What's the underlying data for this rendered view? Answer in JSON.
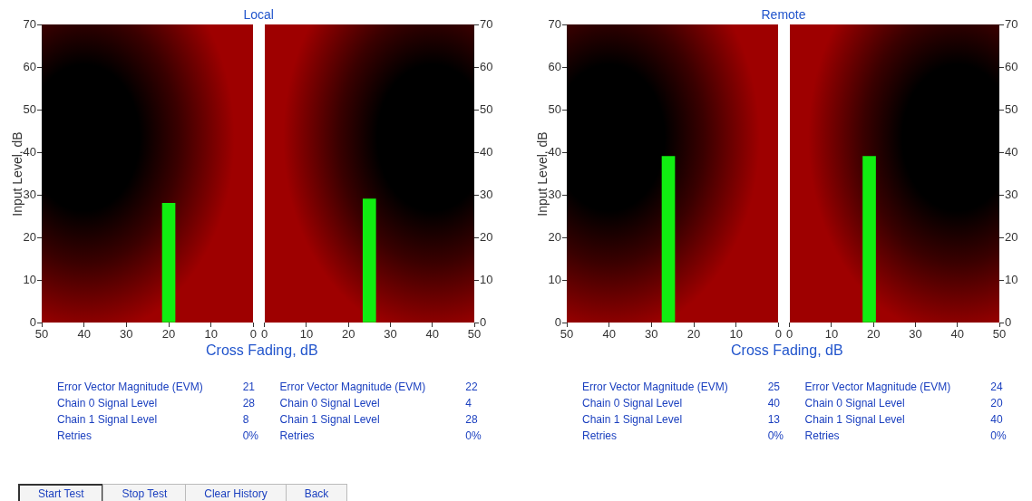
{
  "chart_data": [
    {
      "type": "bar",
      "title": "Local",
      "xlabel": "Cross Fading, dB",
      "ylabel": "Input Level, dB",
      "x": [
        20
      ],
      "series": [
        {
          "color": "#11ee11",
          "values": [
            28
          ]
        }
      ],
      "xlim": [
        50,
        0
      ],
      "xticks": [
        50,
        40,
        30,
        20,
        10,
        0
      ],
      "ylim": [
        0,
        70
      ],
      "yticks": [
        0,
        10,
        20,
        30,
        40,
        50,
        60,
        70
      ],
      "annotations": [
        "Error Vector Magnitude (EVM)",
        "21",
        "Chain 0 Signal Level",
        "28",
        "Chain 1 Signal Level",
        "8",
        "Retries",
        "0%"
      ]
    },
    {
      "type": "bar",
      "x": [
        25
      ],
      "series": [
        {
          "color": "#11ee11",
          "values": [
            29
          ],
          "axis": "y2"
        }
      ],
      "xlim": [
        0,
        50
      ],
      "xticks": [
        0,
        10,
        20,
        30,
        40,
        50
      ],
      "y2lim": [
        0,
        70
      ],
      "y2ticks": [
        0,
        10,
        20,
        30,
        40,
        50,
        60,
        70
      ],
      "annotations": [
        "Error Vector Magnitude (EVM)",
        "22",
        "Chain 0 Signal Level",
        "4",
        "Chain 1 Signal Level",
        "28",
        "Retries",
        "0%"
      ]
    },
    {
      "type": "bar",
      "title": "Remote",
      "xlabel": "Cross Fading, dB",
      "ylabel": "Input Level, dB",
      "x": [
        26
      ],
      "series": [
        {
          "color": "#11ee11",
          "values": [
            39
          ]
        }
      ],
      "xlim": [
        50,
        0
      ],
      "xticks": [
        50,
        40,
        30,
        20,
        10,
        0
      ],
      "ylim": [
        0,
        70
      ],
      "yticks": [
        0,
        10,
        20,
        30,
        40,
        50,
        60,
        70
      ],
      "annotations": [
        "Error Vector Magnitude (EVM)",
        "25",
        "Chain 0 Signal Level",
        "40",
        "Chain 1 Signal Level",
        "13",
        "Retries",
        "0%"
      ]
    },
    {
      "type": "bar",
      "x": [
        19
      ],
      "series": [
        {
          "color": "#11ee11",
          "values": [
            39
          ],
          "axis": "y2"
        }
      ],
      "xlim": [
        0,
        50
      ],
      "xticks": [
        0,
        10,
        20,
        30,
        40,
        50
      ],
      "y2lim": [
        0,
        70
      ],
      "y2ticks": [
        0,
        10,
        20,
        30,
        40,
        50,
        60,
        70
      ],
      "annotations": [
        "Error Vector Magnitude (EVM)",
        "24",
        "Chain 0 Signal Level",
        "20",
        "Chain 1 Signal Level",
        "40",
        "Retries",
        "0%"
      ]
    },
    {
      "type": "other",
      "annotations": [
        "Start Test",
        "Stop Test",
        "Clear History",
        "Back"
      ]
    }
  ]
}
